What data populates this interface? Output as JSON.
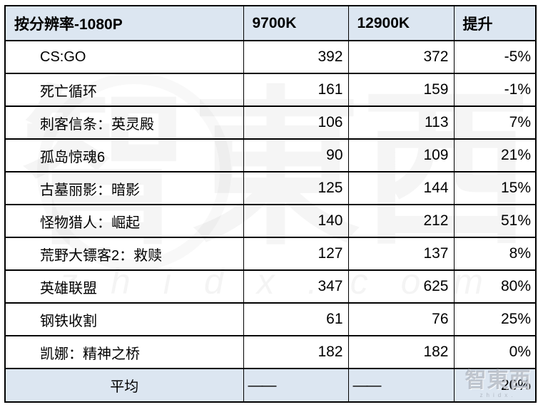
{
  "chart_data": {
    "type": "table",
    "title": "按分辨率-1080P",
    "columns": [
      "按分辨率-1080P",
      "9700K",
      "12900K",
      "提升"
    ],
    "rows": [
      {
        "game": "CS:GO",
        "fps_9700k": 392,
        "fps_12900k": 372,
        "uplift": "-5%"
      },
      {
        "game": "死亡循环",
        "fps_9700k": 161,
        "fps_12900k": 159,
        "uplift": "-1%"
      },
      {
        "game": "刺客信条：英灵殿",
        "fps_9700k": 106,
        "fps_12900k": 113,
        "uplift": "7%"
      },
      {
        "game": "孤岛惊魂6",
        "fps_9700k": 90,
        "fps_12900k": 109,
        "uplift": "21%"
      },
      {
        "game": "古墓丽影：暗影",
        "fps_9700k": 125,
        "fps_12900k": 144,
        "uplift": "15%"
      },
      {
        "game": "怪物猎人：崛起",
        "fps_9700k": 140,
        "fps_12900k": 212,
        "uplift": "51%"
      },
      {
        "game": "荒野大镖客2：救赎",
        "fps_9700k": 127,
        "fps_12900k": 137,
        "uplift": "8%"
      },
      {
        "game": "英雄联盟",
        "fps_9700k": 347,
        "fps_12900k": 625,
        "uplift": "80%"
      },
      {
        "game": "钢铁收割",
        "fps_9700k": 61,
        "fps_12900k": 76,
        "uplift": "25%"
      },
      {
        "game": "凯娜：精神之桥",
        "fps_9700k": 182,
        "fps_12900k": 182,
        "uplift": "0%"
      }
    ],
    "average": {
      "label": "平均",
      "fps_9700k": "——",
      "fps_12900k": "——",
      "uplift": "20%"
    },
    "layout": {
      "header_position": "top",
      "average_row_position": "bottom",
      "grid": "on"
    }
  },
  "watermark": {
    "brand_large": "智東西",
    "url_text": "zhidx.com",
    "corner_brand": "智東西",
    "corner_sub": "zhidx."
  },
  "colors": {
    "header_bg": "#dce6f1",
    "average_row_bg": "#dce6f1",
    "border": "#000000",
    "text": "#000000",
    "watermark_gray": "#949ba8"
  }
}
